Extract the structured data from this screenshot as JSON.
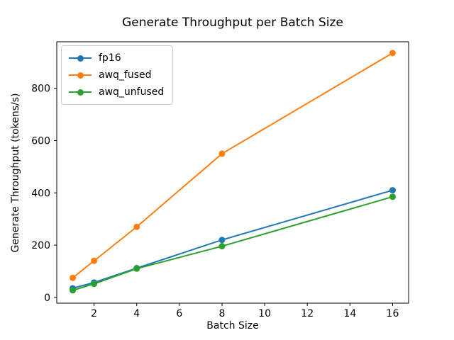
{
  "figure": {
    "background": "#ffffff",
    "text_color": "#000000",
    "spine_color": "#000000"
  },
  "chart_data": {
    "type": "line",
    "title": "Generate Throughput per Batch Size",
    "xlabel": "Batch Size",
    "ylabel": "Generate Throughput (tokens/s)",
    "x": [
      1,
      2,
      4,
      8,
      16
    ],
    "series": [
      {
        "name": "fp16",
        "color": "#1f77b4",
        "values": [
          35,
          57,
          112,
          220,
          410
        ]
      },
      {
        "name": "awq_fused",
        "color": "#ff7f0e",
        "values": [
          75,
          140,
          270,
          550,
          935
        ]
      },
      {
        "name": "awq_unfused",
        "color": "#2ca02c",
        "values": [
          27,
          52,
          110,
          196,
          385
        ]
      }
    ],
    "x_ticks": [
      2,
      4,
      6,
      8,
      10,
      12,
      14,
      16
    ],
    "y_ticks": [
      0,
      200,
      400,
      600,
      800
    ],
    "xlim": [
      0.25,
      16.75
    ],
    "ylim": [
      -22,
      978
    ],
    "grid": false,
    "legend_position": "upper left",
    "marker": "o",
    "line_width": 2,
    "marker_radius": 4.5
  }
}
